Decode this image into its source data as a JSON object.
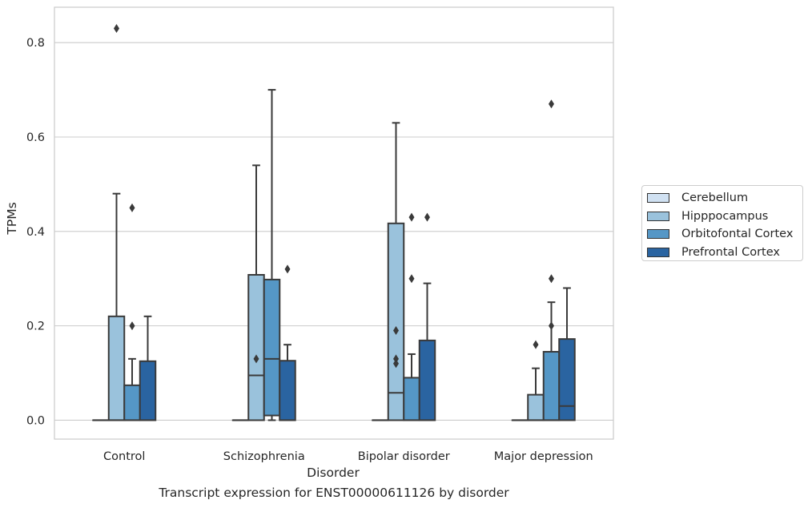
{
  "chart_data": {
    "type": "box",
    "xlabel": "Disorder",
    "ylabel": "TPMs",
    "caption": "Transcript expression for ENST00000611126 by disorder",
    "categories": [
      "Control",
      "Schizophrenia",
      "Bipolar disorder",
      "Major depression"
    ],
    "ylim": [
      -0.04,
      0.875
    ],
    "yticks": [
      "0.0",
      "0.2",
      "0.4",
      "0.6",
      "0.8"
    ],
    "grid": true,
    "legend_position": "right",
    "series": [
      {
        "name": "Cerebellum",
        "color": "#d0e1f2",
        "boxes": [
          {
            "min": 0,
            "q1": 0,
            "median": 0,
            "q3": 0,
            "max": 0,
            "outliers": []
          },
          {
            "min": 0,
            "q1": 0,
            "median": 0,
            "q3": 0,
            "max": 0,
            "outliers": []
          },
          {
            "min": 0,
            "q1": 0,
            "median": 0,
            "q3": 0,
            "max": 0,
            "outliers": []
          },
          {
            "min": 0,
            "q1": 0,
            "median": 0,
            "q3": 0,
            "max": 0,
            "outliers": []
          }
        ]
      },
      {
        "name": "Hipppocampus",
        "color": "#9ac2dc",
        "boxes": [
          {
            "min": 0,
            "q1": 0,
            "median": 0,
            "q3": 0.22,
            "max": 0.48,
            "outliers": [
              0.83
            ]
          },
          {
            "min": 0,
            "q1": 0,
            "median": 0.095,
            "q3": 0.308,
            "max": 0.54,
            "outliers": [
              0.13
            ]
          },
          {
            "min": 0,
            "q1": 0,
            "median": 0.058,
            "q3": 0.417,
            "max": 0.63,
            "outliers": [
              0.19,
              0.13,
              0.12
            ]
          },
          {
            "min": 0,
            "q1": 0,
            "median": 0,
            "q3": 0.054,
            "max": 0.11,
            "outliers": [
              0.16
            ]
          }
        ]
      },
      {
        "name": "Orbitofontal Cortex",
        "color": "#5597c6",
        "boxes": [
          {
            "min": 0,
            "q1": 0,
            "median": 0,
            "q3": 0.074,
            "max": 0.13,
            "outliers": [
              0.2,
              0.45
            ]
          },
          {
            "min": 0,
            "q1": 0.01,
            "median": 0.13,
            "q3": 0.298,
            "max": 0.7,
            "outliers": []
          },
          {
            "min": 0,
            "q1": 0,
            "median": 0,
            "q3": 0.09,
            "max": 0.14,
            "outliers": [
              0.3,
              0.43
            ]
          },
          {
            "min": 0,
            "q1": 0,
            "median": 0,
            "q3": 0.145,
            "max": 0.25,
            "outliers": [
              0.2,
              0.3,
              0.67
            ]
          }
        ]
      },
      {
        "name": "Prefrontal Cortex",
        "color": "#2a64a1",
        "boxes": [
          {
            "min": 0,
            "q1": 0,
            "median": 0,
            "q3": 0.125,
            "max": 0.22,
            "outliers": []
          },
          {
            "min": 0,
            "q1": 0,
            "median": 0,
            "q3": 0.126,
            "max": 0.16,
            "outliers": [
              0.32
            ]
          },
          {
            "min": 0,
            "q1": 0,
            "median": 0,
            "q3": 0.169,
            "max": 0.29,
            "outliers": [
              0.43
            ]
          },
          {
            "min": 0,
            "q1": 0,
            "median": 0.03,
            "q3": 0.172,
            "max": 0.28,
            "outliers": []
          }
        ]
      }
    ]
  }
}
